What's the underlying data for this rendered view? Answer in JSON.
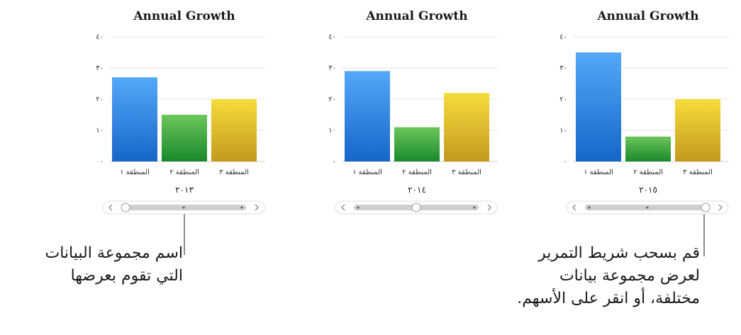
{
  "colors": {
    "blue_top": "#54a8f9",
    "blue_bottom": "#1666c8",
    "green_top": "#6cc65a",
    "green_bottom": "#19892c",
    "yellow_top": "#f6dc3c",
    "yellow_bottom": "#c39a1e",
    "grid": "#e6e6e6",
    "slider_track": "#cfcfcf",
    "slider_border": "#dedede"
  },
  "chart_data": [
    {
      "type": "bar",
      "title": "Annual Growth",
      "categories": [
        "المنطقة ١",
        "المنطقة ٢",
        "المنطقة ٣"
      ],
      "values": [
        27,
        15,
        20
      ],
      "data_set": "٢٠١٣",
      "ylim": [
        0,
        40
      ],
      "yticks": [
        "٠",
        "١٠",
        "٢٠",
        "٣٠",
        "٤٠"
      ],
      "grid": true,
      "slider_position": 0
    },
    {
      "type": "bar",
      "title": "Annual Growth",
      "categories": [
        "المنطقة ١",
        "المنطقة ٢",
        "المنطقة ٣"
      ],
      "values": [
        29,
        11,
        22
      ],
      "data_set": "٢٠١٤",
      "ylim": [
        0,
        40
      ],
      "yticks": [
        "٠",
        "١٠",
        "٢٠",
        "٣٠",
        "٤٠"
      ],
      "grid": true,
      "slider_position": 0.5
    },
    {
      "type": "bar",
      "title": "Annual Growth",
      "categories": [
        "المنطقة ١",
        "المنطقة ٢",
        "المنطقة ٣"
      ],
      "values": [
        35,
        8,
        20
      ],
      "data_set": "٢٠١٥",
      "ylim": [
        0,
        40
      ],
      "yticks": [
        "٠",
        "١٠",
        "٢٠",
        "٣٠",
        "٤٠"
      ],
      "grid": true,
      "slider_position": 1
    }
  ],
  "callouts": {
    "left": {
      "lines": [
        "اسم مجموعة البيانات",
        "التي تقوم بعرضها"
      ]
    },
    "right": {
      "lines": [
        "قم بسحب شريط التمرير",
        "لعرض مجموعة بيانات",
        "مختلفة، أو انقر على الأسهم."
      ]
    }
  }
}
